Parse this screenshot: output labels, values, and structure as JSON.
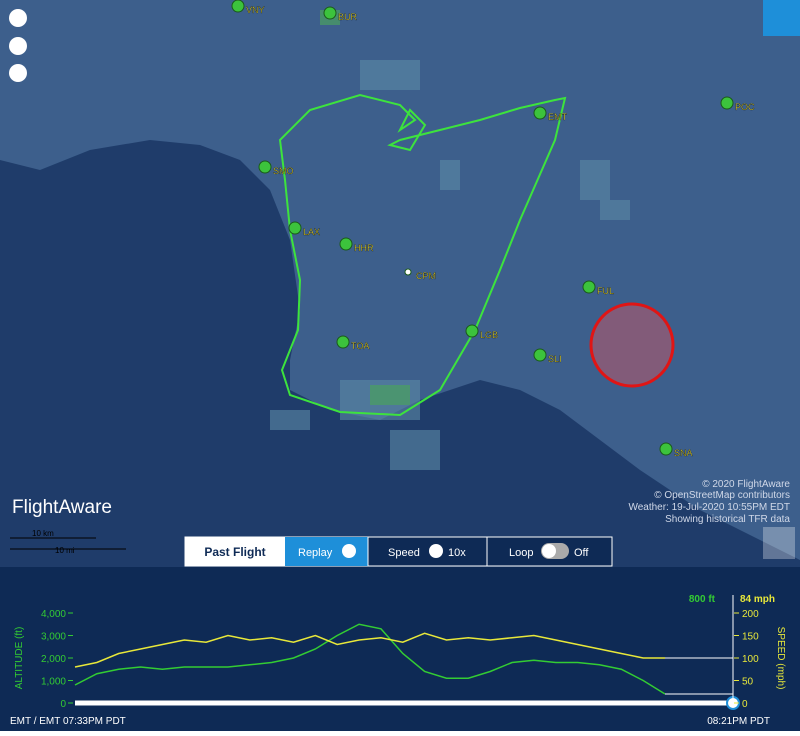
{
  "map": {
    "airports": [
      "VNY",
      "BUR",
      "EMT",
      "POC",
      "SMO",
      "LAX",
      "HHR",
      "CPM",
      "FUL",
      "TOA",
      "LGB",
      "SLI",
      "SNA"
    ],
    "credits": [
      "© 2020 FlightAware",
      "© OpenStreetMap contributors",
      "Weather: 19-Jul-2020 10:55PM EDT",
      "Showing historical TFR data"
    ],
    "logo": "FlightAware",
    "scale": [
      "10 km",
      "10 mi"
    ]
  },
  "controls": {
    "mode": "Past Flight",
    "replay": "Replay",
    "speed_label": "Speed",
    "speed": "10x",
    "loop_label": "Loop",
    "loop": "Off"
  },
  "chart_data": {
    "type": "line",
    "series": [
      {
        "name": "ALTITUDE (ft)",
        "color": "#33cc33",
        "values": [
          800,
          1300,
          1500,
          1600,
          1500,
          1600,
          1600,
          1600,
          1700,
          1800,
          2000,
          2400,
          3000,
          3500,
          3300,
          2200,
          1400,
          1100,
          1100,
          1400,
          1800,
          1900,
          1800,
          1800,
          1700,
          1500,
          1000,
          400
        ]
      },
      {
        "name": "SPEED (mph)",
        "color": "#e8e83a",
        "axis": "y2",
        "values": [
          80,
          90,
          110,
          120,
          130,
          140,
          135,
          150,
          140,
          145,
          135,
          150,
          130,
          140,
          145,
          135,
          155,
          140,
          145,
          140,
          145,
          150,
          140,
          130,
          120,
          110,
          100,
          100
        ]
      }
    ],
    "ylim": [
      0,
      4000
    ],
    "yticks": [
      0,
      {
        "value": 1000,
        "label": "1,000"
      },
      {
        "value": 2000,
        "label": "2,000"
      },
      {
        "value": 3000,
        "label": "3,000"
      },
      {
        "value": 4000,
        "label": "4,000"
      }
    ],
    "y2lim": [
      0,
      200
    ],
    "y2ticks": [
      0,
      50,
      100,
      150,
      200
    ],
    "current": [
      "800 ft",
      "84 mph"
    ],
    "start_time": "EMT / EMT 07:33PM PDT",
    "end_time": "08:21PM PDT"
  }
}
